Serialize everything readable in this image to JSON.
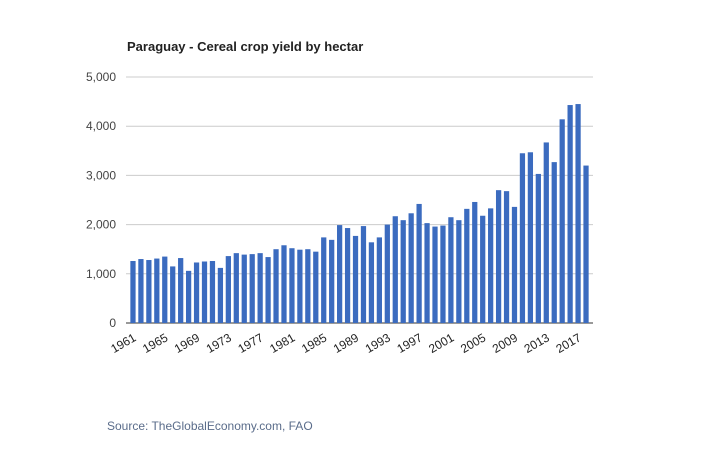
{
  "chart_data": {
    "type": "bar",
    "title": "Paraguay - Cereal crop yield by hectar",
    "source": "Source: TheGlobalEconomy.com, FAO",
    "xlabel": "",
    "ylabel": "",
    "ylim": [
      0,
      5000
    ],
    "y_ticks": [
      0,
      1000,
      2000,
      3000,
      4000,
      5000
    ],
    "y_tick_labels": [
      "0",
      "1,000",
      "2,000",
      "3,000",
      "4,000",
      "5,000"
    ],
    "x_tick_labels": [
      "1961",
      "1965",
      "1969",
      "1973",
      "1977",
      "1981",
      "1985",
      "1989",
      "1993",
      "1997",
      "2001",
      "2005",
      "2009",
      "2013",
      "2017"
    ],
    "grid": true,
    "legend": "none",
    "bar_color": "#3b6bbf",
    "categories": [
      "1961",
      "1962",
      "1963",
      "1964",
      "1965",
      "1966",
      "1967",
      "1968",
      "1969",
      "1970",
      "1971",
      "1972",
      "1973",
      "1974",
      "1975",
      "1976",
      "1977",
      "1978",
      "1979",
      "1980",
      "1981",
      "1982",
      "1983",
      "1984",
      "1985",
      "1986",
      "1987",
      "1988",
      "1989",
      "1990",
      "1991",
      "1992",
      "1993",
      "1994",
      "1995",
      "1996",
      "1997",
      "1998",
      "1999",
      "2000",
      "2001",
      "2002",
      "2003",
      "2004",
      "2005",
      "2006",
      "2007",
      "2008",
      "2009",
      "2010",
      "2011",
      "2012",
      "2013",
      "2014",
      "2015",
      "2016",
      "2017",
      "2018"
    ],
    "values": [
      1260,
      1300,
      1280,
      1310,
      1350,
      1150,
      1320,
      1060,
      1230,
      1250,
      1260,
      1120,
      1360,
      1420,
      1390,
      1400,
      1420,
      1340,
      1500,
      1580,
      1520,
      1490,
      1500,
      1450,
      1740,
      1690,
      1990,
      1930,
      1770,
      1970,
      1640,
      1740,
      2000,
      2170,
      2090,
      2230,
      2420,
      2030,
      1960,
      1980,
      2150,
      2090,
      2320,
      2460,
      2180,
      2330,
      2700,
      2680,
      2360,
      3450,
      3470,
      3030,
      3670,
      3270,
      4140,
      4430,
      4450,
      3200
    ]
  }
}
